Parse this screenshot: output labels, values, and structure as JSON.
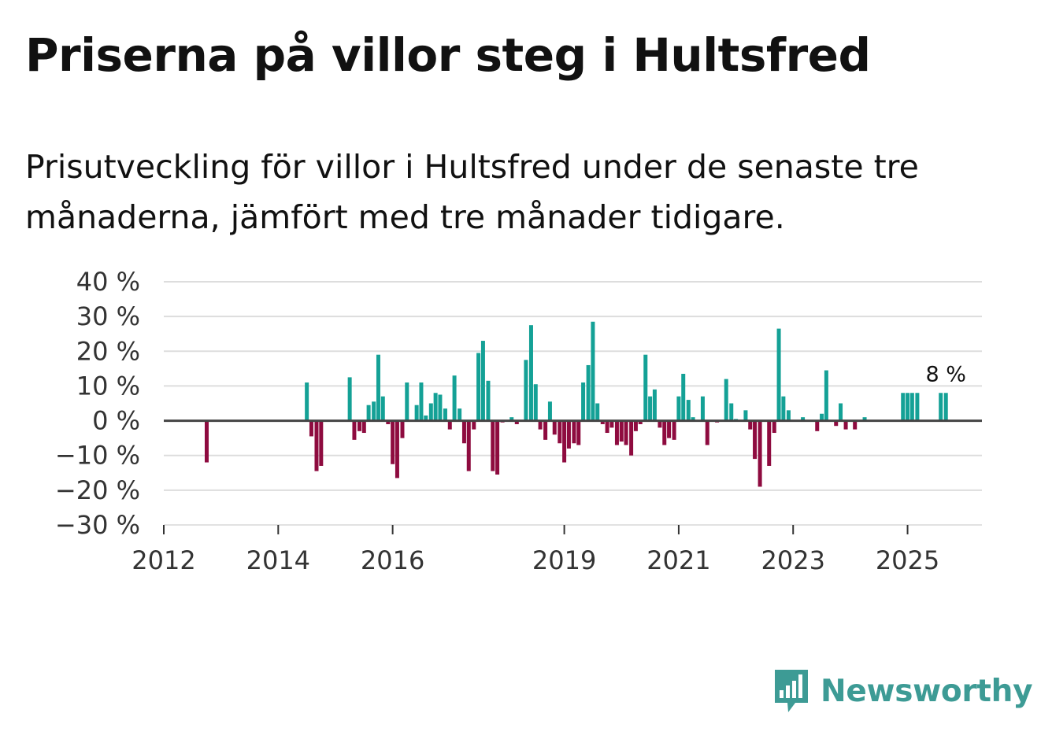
{
  "title": "Priserna på villor steg i Hultsfred",
  "subtitle": "Prisutveckling för villor i Hultsfred under de senaste tre månaderna, jämfört med tre månader tidigare.",
  "brand": {
    "name": "Newsworthy",
    "icon": "bar-chart-speech-bubble-icon"
  },
  "colors": {
    "positive": "#14a196",
    "negative": "#8e0b3f",
    "grid": "#dddddd",
    "zero": "#444444",
    "brand": "#3d9b95"
  },
  "chart_data": {
    "type": "bar",
    "ylim": [
      -30,
      40
    ],
    "yticks": [
      -30,
      -20,
      -10,
      0,
      10,
      20,
      30,
      40
    ],
    "ytick_labels": [
      "−30 %",
      "−20 %",
      "−10 %",
      "0 %",
      "10 %",
      "20 %",
      "30 %",
      "40 %"
    ],
    "xlim": [
      2012,
      2026.3
    ],
    "xticks": [
      2012,
      2014,
      2016,
      2019,
      2021,
      2023,
      2025
    ],
    "xtick_labels": [
      "2012",
      "2014",
      "2016",
      "2019",
      "2021",
      "2023",
      "2025"
    ],
    "annotation": {
      "label": "8 %",
      "x": 2025.67,
      "y": 8
    },
    "series": [
      {
        "name": "Prisutveckling",
        "x": [
          2012.75,
          2014.5,
          2014.58,
          2014.67,
          2014.75,
          2015.25,
          2015.33,
          2015.42,
          2015.5,
          2015.58,
          2015.67,
          2015.75,
          2015.83,
          2015.92,
          2016.0,
          2016.08,
          2016.17,
          2016.25,
          2016.42,
          2016.5,
          2016.58,
          2016.67,
          2016.75,
          2016.83,
          2016.92,
          2017.0,
          2017.08,
          2017.17,
          2017.25,
          2017.33,
          2017.42,
          2017.5,
          2017.58,
          2017.67,
          2017.75,
          2017.83,
          2017.92,
          2018.08,
          2018.17,
          2018.33,
          2018.42,
          2018.5,
          2018.58,
          2018.67,
          2018.75,
          2018.83,
          2018.92,
          2019.0,
          2019.08,
          2019.17,
          2019.25,
          2019.33,
          2019.42,
          2019.5,
          2019.58,
          2019.67,
          2019.75,
          2019.83,
          2019.92,
          2020.0,
          2020.08,
          2020.17,
          2020.25,
          2020.33,
          2020.42,
          2020.5,
          2020.58,
          2020.67,
          2020.75,
          2020.83,
          2020.92,
          2021.0,
          2021.08,
          2021.17,
          2021.25,
          2021.42,
          2021.5,
          2021.67,
          2021.83,
          2021.92,
          2022.0,
          2022.17,
          2022.25,
          2022.33,
          2022.42,
          2022.58,
          2022.67,
          2022.75,
          2022.83,
          2022.92,
          2023.17,
          2023.42,
          2023.5,
          2023.58,
          2023.75,
          2023.83,
          2023.92,
          2024.08,
          2024.25,
          2024.92,
          2025.0,
          2025.08,
          2025.17,
          2025.58,
          2025.67
        ],
        "values": [
          -12,
          11,
          -4.5,
          -14.5,
          -13,
          12.5,
          -5.5,
          -3,
          -3.5,
          4.5,
          5.5,
          19,
          7,
          -1,
          -12.5,
          -16.5,
          -5,
          11,
          4.5,
          11,
          1.5,
          5,
          8,
          7.5,
          3.5,
          -2.5,
          13,
          3.5,
          -6.5,
          -14.5,
          -2.5,
          19.5,
          23,
          11.5,
          -14.5,
          -15.5,
          -0.5,
          1,
          -1,
          17.5,
          27.5,
          10.5,
          -2.5,
          -5.5,
          5.5,
          -4,
          -6.5,
          -12,
          -8,
          -6.5,
          -7,
          11,
          16,
          28.5,
          5,
          -1,
          -3.5,
          -2,
          -7,
          -6,
          -7,
          -10,
          -3,
          -1,
          19,
          7,
          9,
          -2,
          -7,
          -5,
          -5.5,
          7,
          13.5,
          6,
          1,
          7,
          -7,
          -0.5,
          12,
          5,
          0.5,
          3,
          -2.5,
          -11,
          -19,
          -13,
          -3.5,
          26.5,
          7,
          3,
          1,
          -3,
          2,
          14.5,
          -1.5,
          5,
          -2.5,
          -2.5,
          1,
          8,
          8,
          8,
          8,
          8,
          8
        ]
      }
    ]
  }
}
